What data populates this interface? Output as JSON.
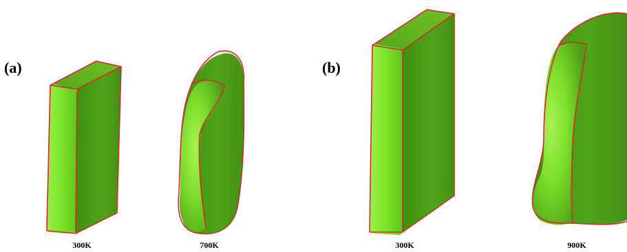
{
  "panels": [
    {
      "label": "(a)",
      "shapes": [
        {
          "temperature": "300K"
        },
        {
          "temperature": "700K"
        }
      ]
    },
    {
      "label": "(b)",
      "shapes": [
        {
          "temperature": "300K"
        },
        {
          "temperature": "900K"
        }
      ]
    }
  ],
  "colors": {
    "front_face": "#7ee82a",
    "side_face": "#4fa518",
    "top_face": "#5fb61f",
    "outline": "#d62a2a"
  }
}
